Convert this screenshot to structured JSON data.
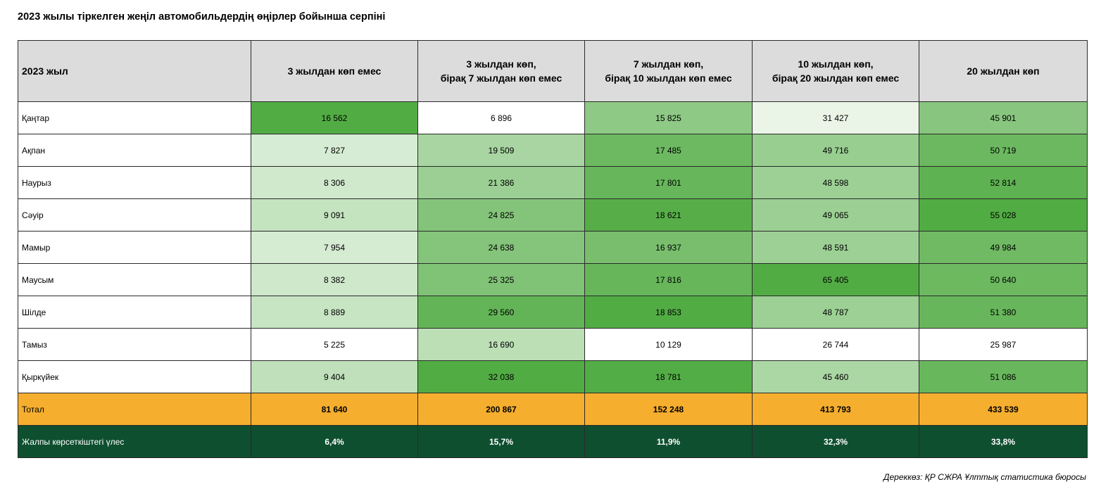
{
  "title": "2023 жылы тіркелген жеңіл автомобильдердің өңірлер бойынша серпіні",
  "source": "Дереккөз: ҚР СЖРА Ұлттық статистика бюросы",
  "chart_data": {
    "type": "heatmap",
    "row_header": "2023 жыл",
    "columns": [
      {
        "line1": "3 жылдан көп емес",
        "line2": ""
      },
      {
        "line1": "3 жылдан көп,",
        "line2": "бірақ 7 жылдан көп емес"
      },
      {
        "line1": "7 жылдан көп,",
        "line2": "бірақ 10 жылдан көп емес"
      },
      {
        "line1": "10 жылдан көп,",
        "line2": "бірақ 20 жылдан көп емес"
      },
      {
        "line1": "20 жылдан көп",
        "line2": ""
      }
    ],
    "rows": [
      {
        "label": "Қаңтар",
        "cells": [
          "16 562",
          "6 896",
          "15 825",
          "31 427",
          "45 901"
        ]
      },
      {
        "label": "Ақпан",
        "cells": [
          "7 827",
          "19 509",
          "17 485",
          "49 716",
          "50 719"
        ]
      },
      {
        "label": "Наурыз",
        "cells": [
          "8 306",
          "21 386",
          "17 801",
          "48 598",
          "52 814"
        ]
      },
      {
        "label": "Сәуір",
        "cells": [
          "9 091",
          "24 825",
          "18 621",
          "49 065",
          "55 028"
        ]
      },
      {
        "label": "Мамыр",
        "cells": [
          "7 954",
          "24 638",
          "16 937",
          "48 591",
          "49 984"
        ]
      },
      {
        "label": "Маусым",
        "cells": [
          "8 382",
          "25 325",
          "17 816",
          "65 405",
          "50 640"
        ]
      },
      {
        "label": "Шілде",
        "cells": [
          "8 889",
          "29 560",
          "18 853",
          "48 787",
          "51 380"
        ]
      },
      {
        "label": "Тамыз",
        "cells": [
          "5 225",
          "16 690",
          "10 129",
          "26 744",
          "25 987"
        ]
      },
      {
        "label": "Қыркүйек",
        "cells": [
          "9 404",
          "32 038",
          "18 781",
          "45 460",
          "51 086"
        ]
      }
    ],
    "total": {
      "label": "Тотал",
      "cells": [
        "81 640",
        "200 867",
        "152 248",
        "413 793",
        "433 539"
      ]
    },
    "share": {
      "label": "Жалпы көрсеткіштегі үлес",
      "cells": [
        "6,4%",
        "15,7%",
        "11,9%",
        "32,3%",
        "33,8%"
      ]
    },
    "color_scale": {
      "low": "#ffffff",
      "high": "#52ac44"
    },
    "colors": {
      "total_row": "#f5ae2e",
      "share_row": "#0e4f2f",
      "header": "#dcdcdc"
    }
  }
}
